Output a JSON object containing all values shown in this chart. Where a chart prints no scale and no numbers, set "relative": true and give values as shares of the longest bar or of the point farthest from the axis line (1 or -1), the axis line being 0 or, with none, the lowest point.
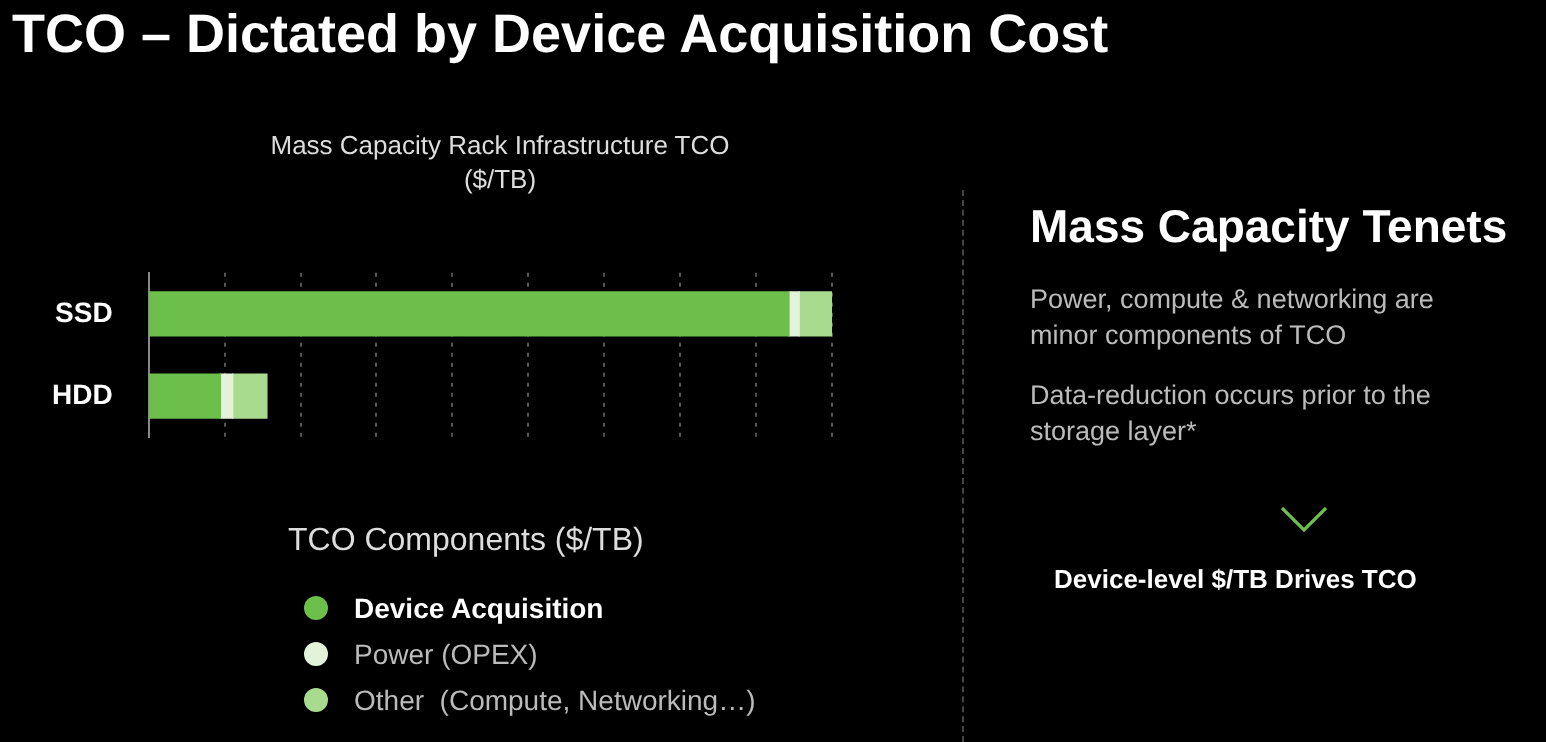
{
  "chart_data": {
    "type": "bar",
    "orientation": "horizontal",
    "stacked": true,
    "relative": true,
    "title": "TCO – Dictated by Device Acquisition Cost",
    "subtitle": "Mass Capacity Rack Infrastructure TCO ($/TB)",
    "categories": [
      "SSD",
      "HDD"
    ],
    "series": [
      {
        "name": "Device Acquisition",
        "color": "#6dbf4b",
        "values": [
          0.937,
          0.105
        ]
      },
      {
        "name": "Power (OPEX)",
        "color": "#e3f3d9",
        "values": [
          0.015,
          0.018
        ]
      },
      {
        "name": "Other  (Compute, Networking…)",
        "color": "#a9db8f",
        "values": [
          0.048,
          0.05
        ]
      }
    ],
    "legend": "bottom",
    "legend_title": "TCO Components ($/TB)",
    "grid": "x",
    "annotations": [
      "Mass Capacity Tenets",
      "Power, compute & networking are minor components of TCO",
      "Data-reduction occurs prior to the storage layer*",
      "Device-level $/TB Drives TCO"
    ]
  }
}
